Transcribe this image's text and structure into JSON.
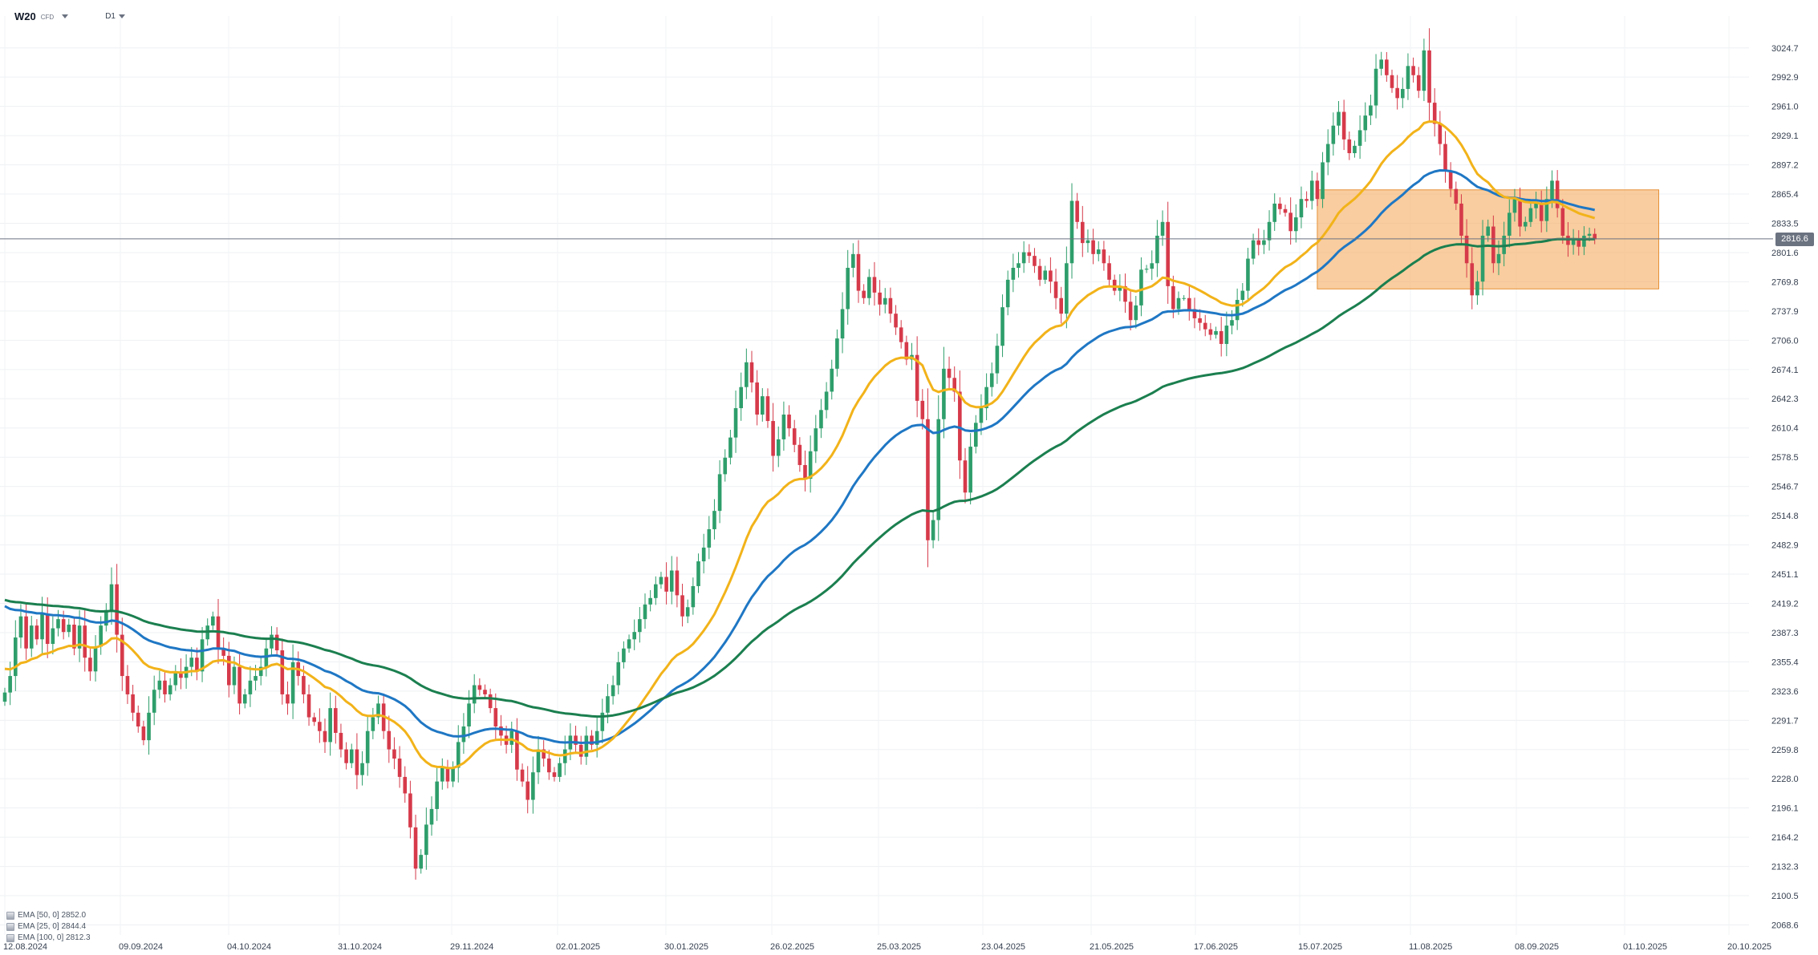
{
  "header": {
    "symbol": "W20",
    "instrument_type": "CFD",
    "timeframe": "D1"
  },
  "chart_data": {
    "type": "candlestick",
    "y_axis": {
      "ticks": [
        "3024.7",
        "2992.9",
        "2961.0",
        "2929.1",
        "2897.2",
        "2865.4",
        "2833.5",
        "2801.6",
        "2769.8",
        "2737.9",
        "2706.0",
        "2674.1",
        "2642.3",
        "2610.4",
        "2578.5",
        "2546.7",
        "2514.8",
        "2482.9",
        "2451.1",
        "2419.2",
        "2387.3",
        "2355.4",
        "2323.6",
        "2291.7",
        "2259.8",
        "2228.0",
        "2196.1",
        "2164.2",
        "2132.3",
        "2100.5",
        "2068.6"
      ],
      "range": [
        2057.7,
        3042.0
      ]
    },
    "x_axis": {
      "ticks": [
        "12.08.2024",
        "09.09.2024",
        "04.10.2024",
        "31.10.2024",
        "29.11.2024",
        "02.01.2025",
        "30.01.2025",
        "26.02.2025",
        "25.03.2025",
        "23.04.2025",
        "21.05.2025",
        "17.06.2025",
        "15.07.2025",
        "11.08.2025",
        "08.09.2025",
        "01.10.2025",
        "20.10.2025"
      ]
    },
    "current_price": {
      "label": "2816.6",
      "value": 2816.6,
      "color": "#6b7280"
    },
    "zone": {
      "start_index": 246,
      "end_index": 310,
      "y_low": 2762,
      "y_high": 2870,
      "color": "#f6b26b"
    },
    "colors": {
      "up": "#2e9e6b",
      "down": "#d63a4a"
    },
    "indicators": [
      {
        "label": "EMA [50, 0] 2852.0",
        "period": 50,
        "color": "#1f77c4"
      },
      {
        "label": "EMA [25, 0] 2844.4",
        "period": 25,
        "color": "#f2b31a"
      },
      {
        "label": "EMA [100, 0] 2812.3",
        "period": 100,
        "color": "#1b7f4f"
      }
    ],
    "series_close": [
      2322,
      2340,
      2382,
      2405,
      2370,
      2395,
      2380,
      2408,
      2375,
      2392,
      2402,
      2388,
      2396,
      2370,
      2395,
      2360,
      2345,
      2372,
      2395,
      2412,
      2440,
      2385,
      2340,
      2320,
      2300,
      2285,
      2270,
      2300,
      2325,
      2335,
      2320,
      2330,
      2345,
      2338,
      2350,
      2360,
      2345,
      2380,
      2395,
      2405,
      2370,
      2362,
      2330,
      2350,
      2310,
      2320,
      2335,
      2340,
      2350,
      2370,
      2385,
      2368,
      2320,
      2310,
      2355,
      2340,
      2320,
      2295,
      2290,
      2280,
      2268,
      2305,
      2278,
      2260,
      2245,
      2260,
      2232,
      2245,
      2280,
      2295,
      2310,
      2280,
      2260,
      2250,
      2230,
      2212,
      2175,
      2130,
      2145,
      2178,
      2195,
      2225,
      2240,
      2225,
      2240,
      2268,
      2285,
      2310,
      2330,
      2325,
      2320,
      2305,
      2285,
      2275,
      2265,
      2280,
      2238,
      2225,
      2205,
      2235,
      2260,
      2250,
      2235,
      2230,
      2245,
      2260,
      2275,
      2265,
      2252,
      2275,
      2265,
      2280,
      2300,
      2318,
      2330,
      2355,
      2370,
      2380,
      2388,
      2402,
      2418,
      2425,
      2440,
      2448,
      2432,
      2455,
      2428,
      2405,
      2415,
      2438,
      2465,
      2480,
      2500,
      2520,
      2560,
      2578,
      2600,
      2632,
      2655,
      2682,
      2660,
      2625,
      2645,
      2618,
      2580,
      2598,
      2625,
      2610,
      2592,
      2570,
      2555,
      2585,
      2610,
      2630,
      2650,
      2675,
      2708,
      2740,
      2785,
      2800,
      2760,
      2752,
      2775,
      2758,
      2745,
      2752,
      2735,
      2720,
      2704,
      2685,
      2690,
      2640,
      2620,
      2488,
      2510,
      2620,
      2675,
      2665,
      2650,
      2575,
      2540,
      2590,
      2616,
      2632,
      2655,
      2670,
      2700,
      2742,
      2772,
      2785,
      2790,
      2802,
      2798,
      2787,
      2772,
      2782,
      2770,
      2752,
      2735,
      2790,
      2858,
      2835,
      2812,
      2815,
      2800,
      2805,
      2790,
      2772,
      2760,
      2765,
      2748,
      2728,
      2744,
      2783,
      2784,
      2790,
      2820,
      2835,
      2765,
      2740,
      2752,
      2752,
      2740,
      2730,
      2725,
      2718,
      2712,
      2716,
      2702,
      2722,
      2728,
      2750,
      2760,
      2795,
      2815,
      2810,
      2815,
      2835,
      2855,
      2849,
      2845,
      2825,
      2840,
      2860,
      2858,
      2880,
      2860,
      2900,
      2920,
      2940,
      2955,
      2925,
      2910,
      2918,
      2935,
      2951,
      2962,
      3002,
      3012,
      2995,
      2981,
      2970,
      2980,
      3005,
      2995,
      2978,
      3022,
      2965,
      2942,
      2920,
      2890,
      2871,
      2855,
      2820,
      2790,
      2755,
      2770,
      2820,
      2830,
      2790,
      2800,
      2820,
      2845,
      2860,
      2830,
      2835,
      2850,
      2855,
      2836,
      2860,
      2880,
      2850,
      2820,
      2810,
      2815,
      2808,
      2820,
      2822,
      2816
    ]
  }
}
